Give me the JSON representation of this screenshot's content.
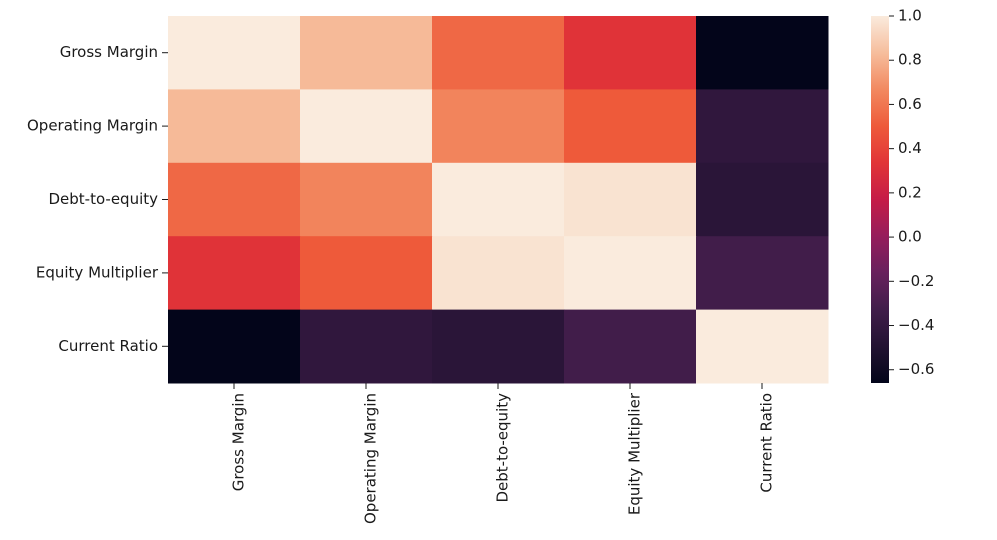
{
  "chart_data": {
    "type": "heatmap",
    "title": "",
    "xlabel": "",
    "ylabel": "",
    "x_categories": [
      "Gross Margin",
      "Operating Margin",
      "Debt-to-equity",
      "Equity Multiplier",
      "Current Ratio"
    ],
    "y_categories": [
      "Gross Margin",
      "Operating Margin",
      "Debt-to-equity",
      "Equity Multiplier",
      "Current Ratio"
    ],
    "values": [
      [
        1.0,
        0.82,
        0.55,
        0.33,
        -0.66
      ],
      [
        0.82,
        1.0,
        0.65,
        0.5,
        -0.42
      ],
      [
        0.55,
        0.65,
        1.0,
        0.97,
        -0.45
      ],
      [
        0.33,
        0.5,
        0.97,
        1.0,
        -0.33
      ],
      [
        -0.66,
        -0.42,
        -0.45,
        -0.33,
        1.0
      ]
    ],
    "colorbar": {
      "min": -0.66,
      "max": 1.0,
      "ticks": [
        1.0,
        0.8,
        0.6,
        0.4,
        0.2,
        0.0,
        -0.2,
        -0.4,
        -0.6
      ],
      "tick_labels": [
        "1.0",
        "0.8",
        "0.6",
        "0.4",
        "0.2",
        "0.0",
        "−0.2",
        "−0.4",
        "−0.6"
      ]
    },
    "colormap": "rocket"
  }
}
